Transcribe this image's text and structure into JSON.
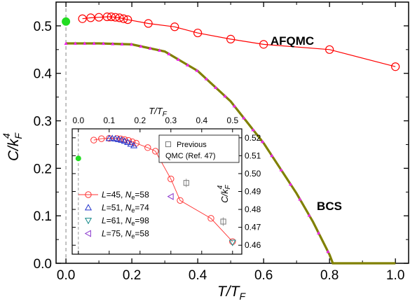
{
  "chart_data": [
    {
      "type": "line",
      "xlabel": "T/T",
      "xlabel_sub": "F",
      "ylabel": "C/k",
      "ylabel_sub": "F",
      "ylabel_sup": "4",
      "xlim": [
        -0.03,
        1.04
      ],
      "ylim": [
        0.0,
        0.55
      ],
      "xticks": [
        0.0,
        0.2,
        0.4,
        0.6,
        0.8,
        1.0
      ],
      "xtick_labels": [
        "0.0",
        "0.2",
        "0.4",
        "0.6",
        "0.8",
        "1.0"
      ],
      "yticks": [
        0.0,
        0.1,
        0.2,
        0.3,
        0.4,
        0.5
      ],
      "ytick_labels": [
        "0.0",
        "0.1",
        "0.2",
        "0.3",
        "0.4",
        "0.5"
      ],
      "annotations": [
        "AFQMC",
        "BCS"
      ],
      "series": [
        {
          "name": "AFQMC",
          "color": "#ff0000",
          "marker": "open-circle",
          "x": [
            0.05,
            0.075,
            0.1,
            0.125,
            0.1375,
            0.15,
            0.1625,
            0.175,
            0.1875,
            0.25,
            0.33,
            0.4,
            0.5,
            0.6,
            0.8,
            1.0
          ],
          "y": [
            0.515,
            0.517,
            0.518,
            0.519,
            0.519,
            0.518,
            0.517,
            0.515,
            0.513,
            0.505,
            0.498,
            0.485,
            0.472,
            0.461,
            0.45,
            0.414
          ]
        },
        {
          "name": "BCS",
          "color": "#808000",
          "marker": "magenta-triangle",
          "x": [
            0.0,
            0.1,
            0.2,
            0.3,
            0.4,
            0.5,
            0.6,
            0.7,
            0.75,
            0.8,
            0.81,
            0.9,
            1.0
          ],
          "y": [
            0.463,
            0.463,
            0.461,
            0.446,
            0.405,
            0.341,
            0.253,
            0.147,
            0.087,
            0.018,
            0.0,
            0.0,
            0.0
          ]
        },
        {
          "name": "T=0",
          "color": "#22dd22",
          "marker": "filled-circle",
          "x": [
            0.0
          ],
          "y": [
            0.509
          ]
        }
      ]
    },
    {
      "type": "scatter",
      "xlabel": "T/T",
      "xlabel_sub": "F",
      "ylabel": "C/k",
      "ylabel_sub": "F",
      "ylabel_sup": "4",
      "xlim": [
        -0.02,
        0.53
      ],
      "ylim": [
        0.455,
        0.525
      ],
      "xticks": [
        0.0,
        0.1,
        0.2,
        0.3,
        0.4,
        0.5
      ],
      "xtick_labels": [
        "0.0",
        "0.1",
        "0.2",
        "0.3",
        "0.4",
        "0.5"
      ],
      "yticks": [
        0.46,
        0.47,
        0.48,
        0.49,
        0.5,
        0.51,
        0.52
      ],
      "ytick_labels": [
        "0.46",
        "0.47",
        "0.48",
        "0.49",
        "0.50",
        "0.51",
        "0.52"
      ],
      "legend_placement": "lower-left",
      "series": [
        {
          "name": "L=45, N",
          "name_sub": "e",
          "name_suffix": "=58",
          "color": "#ff3333",
          "marker": "open-circle",
          "x": [
            0.05,
            0.075,
            0.1,
            0.125,
            0.1375,
            0.15,
            0.1625,
            0.175,
            0.1875,
            0.225,
            0.25,
            0.3,
            0.33,
            0.43,
            0.5
          ],
          "y": [
            0.5187,
            0.5195,
            0.5197,
            0.5196,
            0.5194,
            0.519,
            0.5185,
            0.5178,
            0.517,
            0.5145,
            0.5125,
            0.497,
            0.485,
            0.475,
            0.462
          ]
        },
        {
          "name": "L=51, N",
          "name_sub": "e",
          "name_suffix": "=74",
          "color": "#2233cc",
          "marker": "triangle-up",
          "x": [
            0.1,
            0.11,
            0.12,
            0.13,
            0.14,
            0.15,
            0.16,
            0.17,
            0.18
          ],
          "y": [
            0.5197,
            0.5197,
            0.5195,
            0.5192,
            0.5188,
            0.5182,
            0.5175,
            0.5166,
            0.5157
          ]
        },
        {
          "name": "L=61, N",
          "name_sub": "e",
          "name_suffix": "=98",
          "color": "#118888",
          "marker": "triangle-down",
          "x": [
            0.5
          ],
          "y": [
            0.4615
          ]
        },
        {
          "name": "L=75, N",
          "name_sub": "e",
          "name_suffix": "=58",
          "color": "#8833cc",
          "marker": "triangle-left",
          "x": [
            0.3
          ],
          "y": [
            0.4872
          ]
        },
        {
          "name": "Previous QMC (Ref. 47)",
          "color": "#777777",
          "marker": "open-square",
          "x": [
            0.35,
            0.47
          ],
          "y": [
            0.4948,
            0.4732
          ]
        },
        {
          "name": "T=0",
          "color": "#22dd22",
          "marker": "filled-circle",
          "x": [
            0.0
          ],
          "y": [
            0.5085
          ]
        }
      ],
      "legend_box_text": [
        "Previous",
        "QMC (Ref. 47)"
      ]
    }
  ]
}
